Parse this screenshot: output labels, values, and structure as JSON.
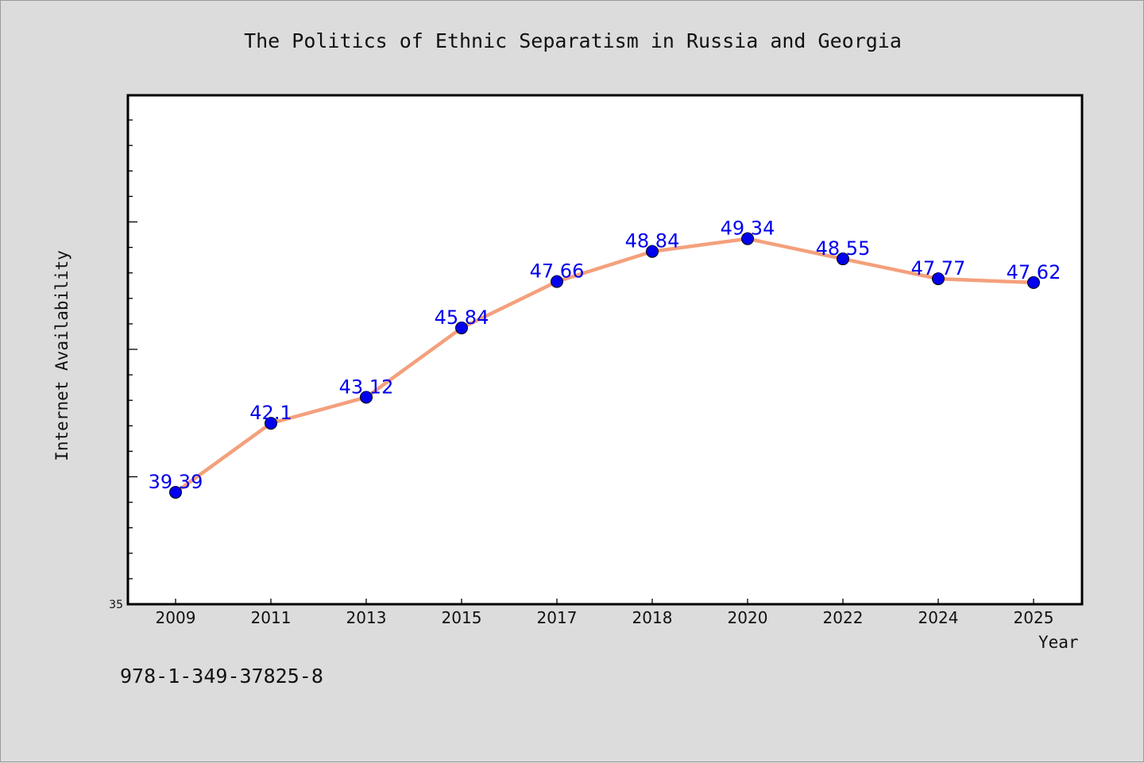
{
  "chart_data": {
    "type": "line",
    "title": "The Politics of Ethnic Separatism in Russia and Georgia",
    "xlabel": "Year",
    "ylabel": "Internet Availability",
    "categories": [
      "2009",
      "2011",
      "2013",
      "2015",
      "2017",
      "2018",
      "2020",
      "2022",
      "2024",
      "2025"
    ],
    "series": [
      {
        "values": [
          39.39,
          42.1,
          43.12,
          45.84,
          47.66,
          48.84,
          49.34,
          48.55,
          47.77,
          47.62
        ],
        "data_labels": [
          "39.39",
          "42.1",
          "43.12",
          "45.84",
          "47.66",
          "48.84",
          "49.34",
          "48.55",
          "47.77",
          "47.62"
        ],
        "line_color": "#f4a07c",
        "marker_color": "#0000ee",
        "label_color": "#0000ee"
      }
    ],
    "ylim": [
      35,
      55
    ],
    "ytick_labels": [
      {
        "value": 35,
        "label": "35"
      }
    ],
    "grid": false,
    "legend": "none"
  },
  "footer_text": "978-1-349-37825-8"
}
